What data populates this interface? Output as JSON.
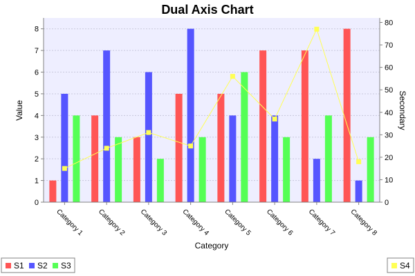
{
  "chart_data": {
    "type": "bar",
    "title": "Dual Axis Chart",
    "xlabel": "Category",
    "ylabel": "Value",
    "y2label": "Secondary",
    "ylim": [
      0,
      8.5
    ],
    "yticks": [
      0,
      1,
      2,
      3,
      4,
      5,
      6,
      7,
      8
    ],
    "y2lim": [
      0,
      82
    ],
    "y2ticks": [
      0,
      10,
      20,
      30,
      40,
      50,
      60,
      70,
      80
    ],
    "categories": [
      "Category 1",
      "Category 2",
      "Category 3",
      "Category 4",
      "Category 5",
      "Category 6",
      "Category 7",
      "Category 8"
    ],
    "series": [
      {
        "name": "S1",
        "type": "bar",
        "axis": "primary",
        "color": "#FF5555",
        "values": [
          1,
          4,
          3,
          5,
          5,
          7,
          7,
          8
        ]
      },
      {
        "name": "S2",
        "type": "bar",
        "axis": "primary",
        "color": "#5555FF",
        "values": [
          5,
          7,
          6,
          8,
          4,
          4,
          2,
          1
        ]
      },
      {
        "name": "S3",
        "type": "bar",
        "axis": "primary",
        "color": "#55FF55",
        "values": [
          4,
          3,
          2,
          3,
          6,
          3,
          4,
          3
        ]
      },
      {
        "name": "S4",
        "type": "line",
        "axis": "secondary",
        "color": "#FFFF55",
        "values": [
          15,
          24,
          31,
          25,
          56,
          37,
          77,
          18
        ]
      }
    ],
    "grid": true,
    "plot_background": "#EEEEFF",
    "legend_left": [
      "S1",
      "S2",
      "S3"
    ],
    "legend_right": [
      "S4"
    ]
  }
}
